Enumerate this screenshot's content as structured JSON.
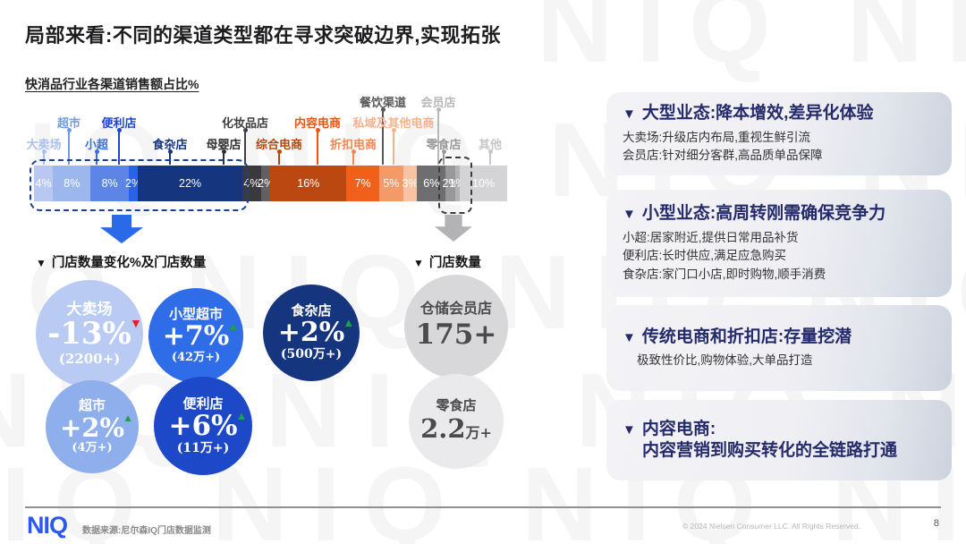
{
  "slide": {
    "title": "局部来看:不同的渠道类型都在寻求突破边界,实现拓张",
    "watermark": "NIQ"
  },
  "ui": {
    "marker": "▼"
  },
  "chart_data": {
    "type": "bar",
    "variant": "stacked-horizontal-100pct",
    "title": "快消品行业各渠道销售额占比%",
    "unit": "%",
    "segments": [
      {
        "label": "大卖场",
        "value": 4,
        "color": "#b8c8f0",
        "label_color": "#a9c0ee"
      },
      {
        "label": "超市",
        "value": 8,
        "color": "#9cb6ee",
        "label_color": "#6f9ce8"
      },
      {
        "label": "小超",
        "value": 8,
        "color": "#5c85e6",
        "label_color": "#3a6ee0"
      },
      {
        "label": "便利店",
        "value": 2,
        "color": "#2a62e8",
        "label_color": "#1c49cc"
      },
      {
        "label": "食杂店",
        "value": 22,
        "color": "#16357f",
        "label_color": "#16357f"
      },
      {
        "label": "母婴店",
        "value": 4,
        "color": "#3a3a3c",
        "label_color": "#2f2f31"
      },
      {
        "label": "化妆品店",
        "value": 2,
        "color": "#616165",
        "label_color": "#3f3f42"
      },
      {
        "label": "综合电商",
        "value": 16,
        "color": "#bc4811",
        "label_color": "#b5470e"
      },
      {
        "label": "内容电商",
        "value": 7,
        "color": "#f0601a",
        "label_color": "#ee5312"
      },
      {
        "label": "折扣电商",
        "value": 5,
        "color": "#f39a68",
        "label_color": "#f08852"
      },
      {
        "label": "私域及其他电商",
        "value": 3,
        "color": "#f7c3a2",
        "label_color": "#f6b28c"
      },
      {
        "label": "餐饮渠道",
        "value": 6,
        "color": "#6e6e70",
        "label_color": "#58585a"
      },
      {
        "label": "零食店",
        "value": 2,
        "color": "#98989a",
        "label_color": "#9a9a9c"
      },
      {
        "label": "会员店",
        "value": 1,
        "color": "#b2b2b4",
        "label_color": "#b8b8ba"
      },
      {
        "label": "其他",
        "value": 10,
        "color": "#d4d4d6",
        "label_color": "#c6c6c8"
      }
    ],
    "highlight_groups": [
      {
        "channels": [
          "大卖场",
          "超市",
          "小超",
          "便利店",
          "食杂店"
        ],
        "style": "blue-dashed-outline-with-down-arrow"
      },
      {
        "channels": [
          "零食店",
          "会员店"
        ],
        "style": "gray-dashed-outline-with-down-arrow"
      }
    ]
  },
  "store_stats": {
    "left_heading": "门店数量变化%及门店数量",
    "right_heading": "门店数量",
    "change_bubbles": [
      {
        "name": "大卖场",
        "change": "-13%",
        "trend": "down",
        "count": "(2200+)",
        "color": "#b9cbf2"
      },
      {
        "name": "小型超市",
        "change": "+7%",
        "trend": "up",
        "count": "(42万+)",
        "color": "#2f6ce8"
      },
      {
        "name": "食杂店",
        "change": "+2%",
        "trend": "up",
        "count": "(500万+)",
        "color": "#16357f"
      },
      {
        "name": "超市",
        "change": "+2%",
        "trend": "up",
        "count": "(4万+)",
        "color": "#8fafec"
      },
      {
        "name": "便利店",
        "change": "+6%",
        "trend": "up",
        "count": "(11万+)",
        "color": "#1d49c8"
      }
    ],
    "count_bubbles": [
      {
        "name": "仓储会员店",
        "count": "175+",
        "suffix": "",
        "color": "#d8d8da"
      },
      {
        "name": "零食店",
        "count": "2.2",
        "suffix": "万+",
        "color": "#eaeaec"
      }
    ]
  },
  "insights": [
    {
      "title": "大型业态:降本增效,差异化体验",
      "title2": "",
      "lines": [
        "大卖场:升级店内布局,重视生鲜引流",
        "会员店:针对细分客群,高品质单品保障"
      ]
    },
    {
      "title": "小型业态:高周转刚需确保竞争力",
      "title2": "",
      "lines": [
        "小超:居家附近,提供日常用品补货",
        "便利店:长时供应,满足应急购买",
        "食杂店:家门口小店,即时购物,顺手消费"
      ]
    },
    {
      "title": "传统电商和折扣店:存量挖潜",
      "title2": "",
      "lines": [
        "极致性价比,购物体验,大单品打造"
      ]
    },
    {
      "title": "内容电商:",
      "title2": "内容营销到购买转化的全链路打通",
      "lines": []
    }
  ],
  "footer": {
    "logo": "NIQ",
    "source": "数据来源:尼尔森IQ门店数据监测",
    "copyright": "© 2024 Nielsen Consumer LLC. All Rights Reserved.",
    "page": "8"
  }
}
